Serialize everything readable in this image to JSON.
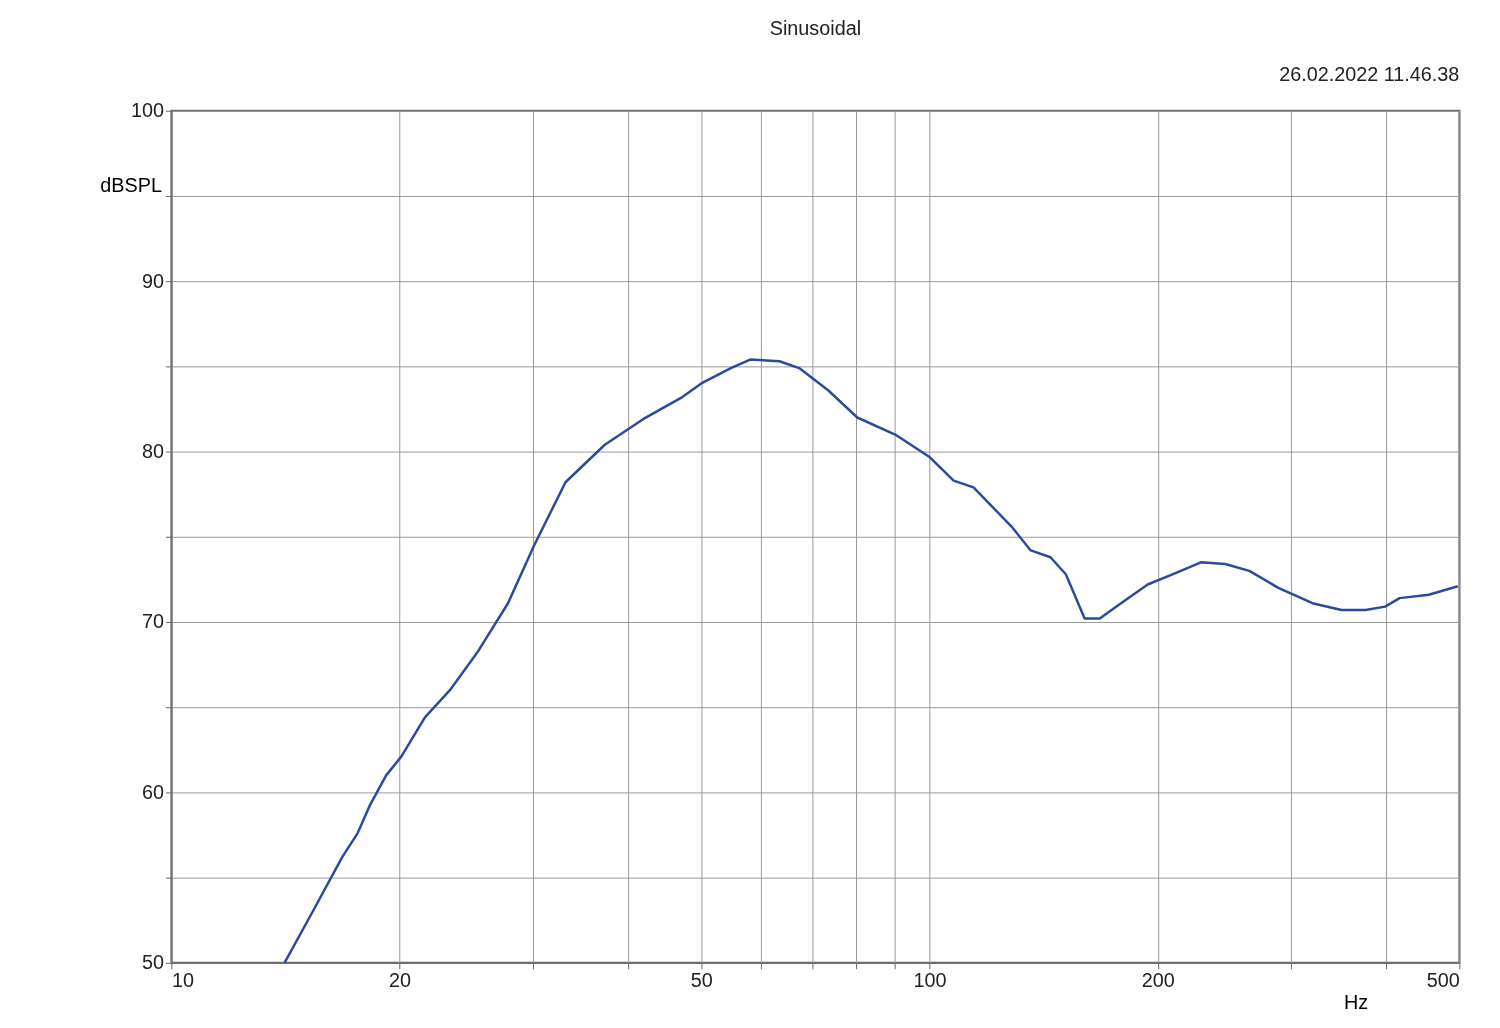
{
  "chart_data": {
    "type": "line",
    "title": "Sinusoidal",
    "xlabel": "Hz",
    "ylabel": "dBSPL",
    "annotations": [
      "26.02.2022 11.46.38"
    ],
    "log": "x",
    "grid": true,
    "marker": "none",
    "line_style": "solid",
    "xlim": [
      10,
      500
    ],
    "ylim": [
      50,
      100
    ],
    "xticks": [
      10,
      20,
      {
        "value": 30,
        "label": null
      },
      {
        "value": 40,
        "label": null
      },
      50,
      {
        "value": 60,
        "label": null
      },
      {
        "value": 70,
        "label": null
      },
      {
        "value": 80,
        "label": null
      },
      {
        "value": 90,
        "label": null
      },
      100,
      200,
      {
        "value": 300,
        "label": null
      },
      {
        "value": 400,
        "label": null
      },
      500
    ],
    "yticks": [
      50,
      {
        "value": 55,
        "label": null
      },
      60,
      {
        "value": 65,
        "label": null
      },
      70,
      {
        "value": 75,
        "label": null
      },
      80,
      {
        "value": 85,
        "label": null
      },
      90,
      {
        "value": 95,
        "label": null
      },
      100
    ],
    "x": [
      14.1,
      15.4,
      16.8,
      17.6,
      18.3,
      19.2,
      20.1,
      21.6,
      23.3,
      25.4,
      27.8,
      30.1,
      33.1,
      37.3,
      41.9,
      47.2,
      50.0,
      54.7,
      58.0,
      63.4,
      67.3,
      73.5,
      80.3,
      90.1,
      99.9,
      107.6,
      114.3,
      128.3,
      136.0,
      144.4,
      151.3,
      160.2,
      167.7,
      177.6,
      194.0,
      211.9,
      228.0,
      245.5,
      264.2,
      288.5,
      320.0,
      349.5,
      376.0,
      399.0,
      417.0,
      455.7,
      497.6
    ],
    "series": [
      {
        "color": "#2b4a9c",
        "values": [
          50.0,
          53.1,
          56.2,
          57.6,
          59.3,
          61.0,
          62.1,
          64.4,
          66.0,
          68.3,
          71.1,
          74.5,
          78.2,
          80.4,
          81.9,
          83.2,
          84.0,
          84.9,
          85.4,
          85.3,
          84.9,
          83.6,
          82.0,
          81.0,
          79.7,
          78.3,
          77.9,
          75.6,
          74.2,
          73.8,
          72.8,
          70.2,
          70.2,
          71.0,
          72.2,
          72.9,
          73.5,
          73.4,
          73.0,
          72.0,
          71.1,
          70.7,
          70.7,
          70.9,
          71.4,
          71.6,
          72.1
        ]
      }
    ]
  }
}
